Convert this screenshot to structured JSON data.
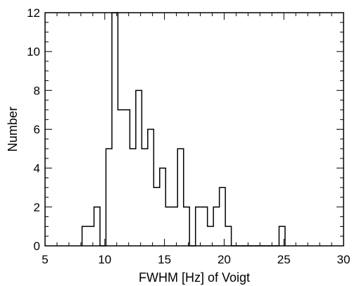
{
  "chart_data": {
    "type": "histogram",
    "xlabel": "FWHM [Hz] of Voigt",
    "ylabel": "Number",
    "xlim": [
      5,
      30
    ],
    "ylim": [
      0,
      12
    ],
    "xticks": [
      "5",
      "10",
      "15",
      "20",
      "25",
      "30"
    ],
    "yticks": [
      "0",
      "2",
      "4",
      "6",
      "8",
      "10",
      "12"
    ],
    "grid": false,
    "bin_edges": [
      8.1,
      9.1,
      9.6,
      10.1,
      10.6,
      11.1,
      12.1,
      12.6,
      13.1,
      13.6,
      14.1,
      14.6,
      15.1,
      16.1,
      16.6,
      17.1,
      17.6,
      18.6,
      19.1,
      19.6,
      20.1,
      20.6,
      24.6,
      25.1
    ],
    "counts": [
      1,
      2,
      0,
      5,
      12,
      7,
      5,
      8,
      5,
      6,
      3,
      4,
      2,
      5,
      2,
      0,
      2,
      1,
      2,
      3,
      1,
      0,
      1
    ]
  }
}
